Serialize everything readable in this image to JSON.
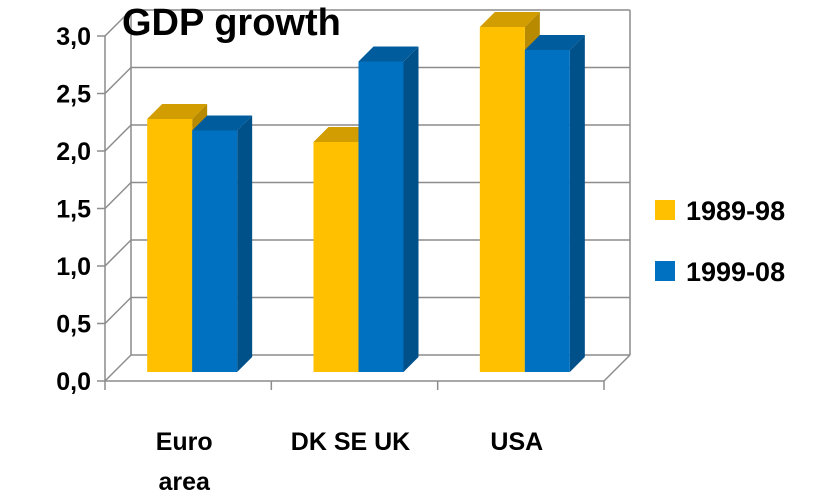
{
  "chart_data": {
    "type": "bar",
    "title": "GDP growth",
    "categories": [
      [
        "Euro",
        "area"
      ],
      [
        "DK SE UK"
      ],
      [
        "USA"
      ]
    ],
    "series": [
      {
        "name": "1989-98",
        "values": [
          2.2,
          2.0,
          3.0
        ],
        "color": "#FFC000"
      },
      {
        "name": "1999-08",
        "values": [
          2.1,
          2.7,
          2.8
        ],
        "color": "#0070C0"
      }
    ],
    "y_ticks": [
      "0,0",
      "0,5",
      "1,0",
      "1,5",
      "2,0",
      "2,5",
      "3,0"
    ],
    "ylim": [
      0,
      3.0
    ],
    "grid": true,
    "legend_position": "right"
  }
}
